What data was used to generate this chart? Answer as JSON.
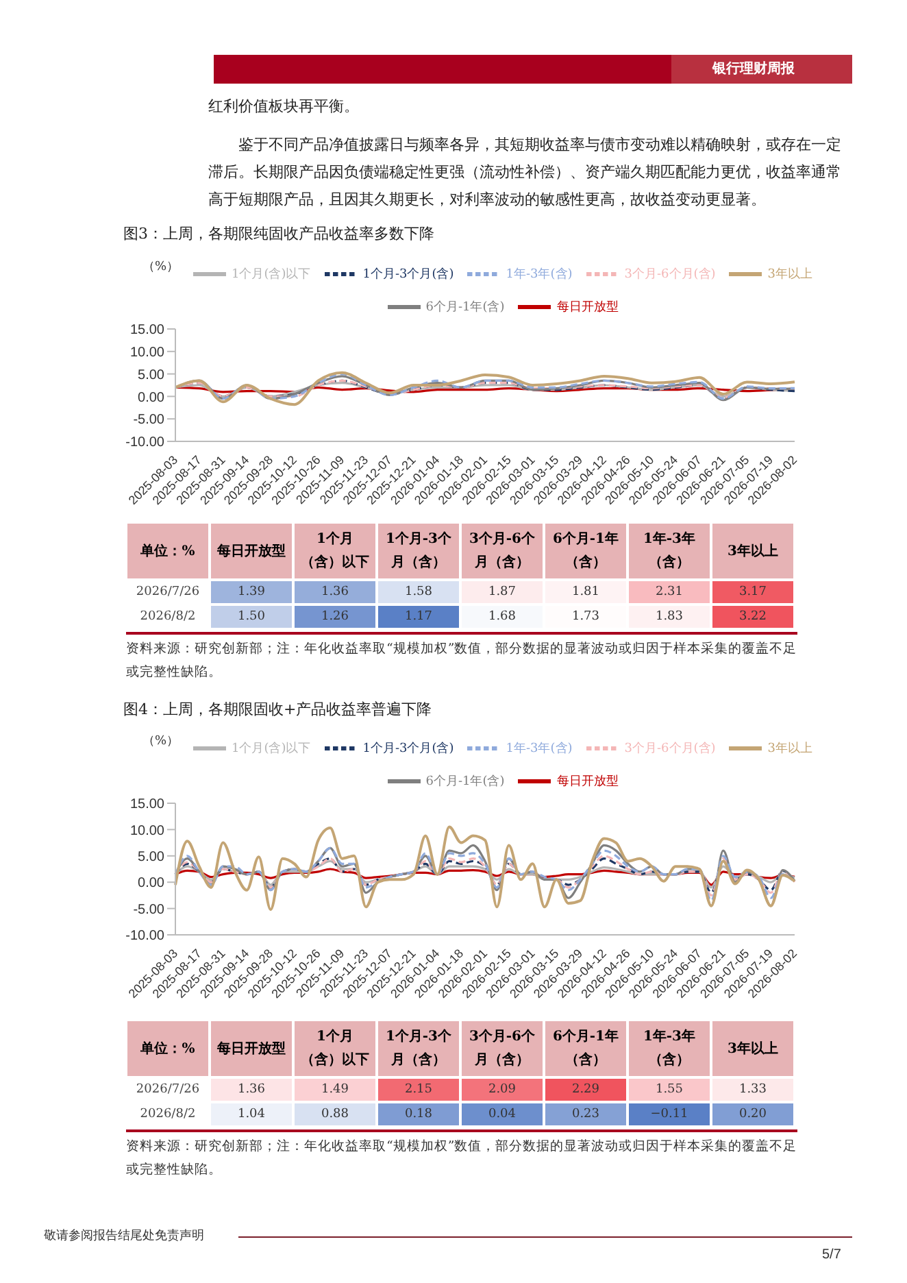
{
  "chart_data": [
    {
      "type": "line",
      "title": "图3：上周，各期限纯固收产品收益率多数下降",
      "ylabel": "（%）",
      "annotations": [
        "银行理财周报",
        "红利价值板块再平衡。",
        "鉴于不同产品净值披露日与频率各异，其短期收益率与债市变动难以精确映射，或存在一定滞后。长期限产品因负债端稳定性更强（流动性补偿）、资产端久期匹配能力更优，收益率通常高于短期限产品，且因其久期更长，对利率波动的敏感性更高，故收益变动更显著。"
      ],
      "categories": [
        "2025-08-03",
        "2025-08-17",
        "2025-08-31",
        "2025-09-14",
        "2025-09-28",
        "2025-10-12",
        "2025-10-26",
        "2025-11-09",
        "2025-11-23",
        "2025-12-07",
        "2025-12-21",
        "2026-01-04",
        "2026-01-18",
        "2026-02-01",
        "2026-02-15",
        "2026-03-01",
        "2026-03-15",
        "2026-03-29",
        "2026-04-12",
        "2026-04-26",
        "2026-05-10",
        "2026-05-24",
        "2026-06-07",
        "2026-06-21",
        "2026-07-05",
        "2026-07-19",
        "2026-08-02"
      ],
      "series": [
        {
          "name": "每日开放型",
          "color": "#c00000",
          "values": [
            2,
            1.8,
            1,
            1.2,
            1.2,
            1,
            2,
            1.5,
            1.8,
            1.3,
            1,
            1.5,
            1.5,
            1.5,
            1.8,
            1.5,
            1.2,
            1.5,
            1.8,
            1.8,
            1.5,
            1.5,
            1.8,
            1.5,
            1.2,
            1.4,
            1.5
          ]
        },
        {
          "name": "1个月(含)以下",
          "color": "#b4b4b4",
          "values": [
            2,
            2.5,
            0,
            2,
            0,
            1,
            2.5,
            3,
            2,
            0.8,
            1.5,
            2,
            2,
            2.5,
            2.5,
            1.5,
            1.5,
            2,
            2.5,
            2,
            1.5,
            2,
            2.5,
            0,
            2,
            1.5,
            1.26
          ]
        },
        {
          "name": "1个月-3个月(含)",
          "color": "#1f3864",
          "line_style": "dashed",
          "values": [
            2,
            3,
            0,
            2,
            0,
            0.5,
            2.5,
            3.5,
            2,
            0.5,
            1.5,
            2.5,
            2,
            3,
            3,
            1.5,
            1.5,
            2,
            2.5,
            2,
            1.5,
            2,
            2.5,
            -0.5,
            2,
            1.5,
            1.17
          ]
        },
        {
          "name": "3个月-6个月(含)",
          "color": "#f4b6b6",
          "line_style": "dashed",
          "values": [
            2,
            3,
            0,
            2,
            0,
            0,
            2.5,
            3.5,
            2.2,
            0.5,
            1.5,
            2.5,
            2,
            3,
            3,
            1.8,
            1.8,
            2.2,
            2.5,
            2.2,
            1.8,
            2.2,
            2.5,
            -0.3,
            2,
            1.8,
            1.68
          ]
        },
        {
          "name": "6个月-1年(含)",
          "color": "#7f7f7f",
          "values": [
            2,
            3.5,
            -0.5,
            2.5,
            -0.5,
            0.5,
            3,
            4.5,
            2.5,
            0.3,
            2,
            3,
            2,
            3.5,
            3.5,
            1.5,
            1.8,
            2.5,
            3.5,
            3,
            2,
            2.5,
            3,
            -0.8,
            2,
            1.7,
            1.73
          ]
        },
        {
          "name": "1年-3年(含)",
          "color": "#8faadc",
          "line_style": "dashed",
          "values": [
            2,
            3.5,
            -0.5,
            2.5,
            -0.5,
            0,
            3,
            5,
            2.5,
            0.3,
            2,
            3.5,
            2,
            3.5,
            3.5,
            2,
            2,
            2.8,
            3.5,
            3,
            2.2,
            2.8,
            3.2,
            -0.5,
            2.2,
            1.8,
            1.83
          ]
        },
        {
          "name": "3年以上",
          "color": "#c4a574",
          "values": [
            2,
            3.5,
            -1.2,
            2.5,
            -0.5,
            -1.8,
            3.5,
            5.3,
            3,
            0.8,
            2.5,
            2.5,
            3.5,
            4.8,
            4.3,
            2.5,
            2.8,
            3.5,
            4.5,
            4,
            3,
            3.3,
            4.2,
            0.5,
            3.2,
            2.8,
            3.22
          ]
        }
      ],
      "ylim": [
        -10,
        15
      ],
      "yticks": [
        {
          "value": -10,
          "label": "-10.00"
        },
        {
          "value": -5,
          "label": "-5.00"
        },
        {
          "value": 0,
          "label": "0.00"
        },
        {
          "value": 5,
          "label": "5.00"
        },
        {
          "value": 10,
          "label": "10.00"
        },
        {
          "value": 15,
          "label": "15.00"
        }
      ],
      "grid": false,
      "legend": "top",
      "marker": "none",
      "line_style": "solid"
    },
    {
      "type": "heatmap",
      "ylabel": "单位：%",
      "annotations": [
        "资料来源：研究创新部；注：年化收益率取“规模加权”数值，部分数据的显著波动或归因于样本采集的覆盖不足或完整性缺陷。"
      ],
      "categories": [
        "每日开放型",
        "1个月（含）以下",
        "1个月-3个月（含）",
        "3个月-6个月（含）",
        "6个月-1年（含）",
        "1年-3年（含）",
        "3年以上"
      ],
      "y_categories": [
        "2026/7/26",
        "2026/8/2"
      ],
      "cells": [
        [
          1.39,
          1.36,
          1.58,
          1.87,
          1.81,
          2.31,
          3.17
        ],
        [
          1.5,
          1.26,
          1.17,
          1.68,
          1.73,
          1.83,
          3.22
        ]
      ],
      "cell_labels": [
        [
          "1.39",
          "1.36",
          "1.58",
          "1.87",
          "1.81",
          "2.31",
          "3.17"
        ],
        [
          "1.50",
          "1.26",
          "1.17",
          "1.68",
          "1.73",
          "1.83",
          "3.22"
        ]
      ],
      "colors": [
        "#5a80c6",
        "#ffffff",
        "#f0545e"
      ]
    },
    {
      "type": "line",
      "title": "图4：上周，各期限固收+产品收益率普遍下降",
      "ylabel": "（%）",
      "categories": [
        "2025-08-03",
        null,
        "2025-08-17",
        null,
        "2025-08-31",
        null,
        "2025-09-14",
        null,
        "2025-09-28",
        null,
        "2025-10-12",
        null,
        "2025-10-26",
        null,
        "2025-11-09",
        null,
        "2025-11-23",
        null,
        "2025-12-07",
        null,
        "2025-12-21",
        null,
        "2026-01-04",
        null,
        "2026-01-18",
        null,
        "2026-02-01",
        null,
        "2026-02-15",
        null,
        "2026-03-01",
        null,
        "2026-03-15",
        null,
        "2026-03-29",
        null,
        "2026-04-12",
        null,
        "2026-04-26",
        null,
        "2026-05-10",
        null,
        "2026-05-24",
        null,
        "2026-06-07",
        null,
        "2026-06-21",
        null,
        "2026-07-05",
        null,
        "2026-07-19",
        null,
        "2026-08-02"
      ],
      "series": [
        {
          "name": "每日开放型",
          "color": "#c00000",
          "values": [
            1.5,
            2.2,
            2,
            1,
            1.5,
            1.8,
            1.8,
            1.5,
            0.8,
            1.5,
            1.8,
            1.8,
            2,
            2.5,
            2,
            1.8,
            0.8,
            1,
            1.2,
            1.5,
            1.8,
            1.8,
            1.5,
            2.2,
            2.2,
            2.3,
            2,
            1.2,
            2,
            1.5,
            1.5,
            1,
            1.2,
            1.5,
            1.5,
            1.8,
            2.2,
            2,
            1.8,
            1.5,
            1.5,
            1.5,
            1.5,
            1.8,
            1.8,
            -0.5,
            2,
            1.5,
            1.5,
            1,
            0.8,
            1.36,
            1.04
          ]
        },
        {
          "name": "1个月(含)以下",
          "color": "#b4b4b4",
          "values": [
            1.5,
            3,
            2,
            0.5,
            2.5,
            2,
            1.5,
            2,
            -0.5,
            2,
            2,
            2,
            3,
            4,
            2.5,
            2.5,
            0,
            0.5,
            1,
            1.5,
            2,
            3,
            1.5,
            3,
            3,
            3,
            2.5,
            0.5,
            2.5,
            1.5,
            1.5,
            0.5,
            0.5,
            0.5,
            1,
            2,
            2.8,
            2.5,
            2,
            1.5,
            1.5,
            1.5,
            1.5,
            2,
            2,
            -1,
            3,
            1,
            1.5,
            1,
            0,
            1.49,
            0.88
          ]
        },
        {
          "name": "1个月-3个月(含)",
          "color": "#1f3864",
          "line_style": "dashed",
          "values": [
            1.5,
            3.5,
            2,
            0,
            2.5,
            2,
            1.5,
            2,
            -1,
            2,
            2.5,
            2,
            3.5,
            4.5,
            2,
            2.5,
            -0.5,
            0.5,
            1,
            1.5,
            2,
            3.5,
            1.5,
            4,
            3.5,
            4,
            3,
            -0.5,
            3.5,
            1.5,
            2,
            0.5,
            0.5,
            -0.5,
            0.5,
            2.5,
            4.5,
            3.5,
            2.5,
            1.5,
            2,
            1.5,
            1.5,
            2,
            2,
            -2,
            4,
            0.5,
            1.5,
            0.5,
            -1.5,
            2.15,
            0.18
          ]
        },
        {
          "name": "3个月-6个月(含)",
          "color": "#f4b6b6",
          "line_style": "dashed",
          "values": [
            1.5,
            3.8,
            2,
            0,
            2.5,
            2,
            1.5,
            2,
            -1,
            2,
            2.5,
            2,
            3,
            4.5,
            2,
            2.5,
            -0.5,
            0.5,
            1,
            1.5,
            2,
            4,
            1.5,
            4.5,
            3.8,
            4.5,
            3,
            -0.5,
            3.5,
            1.5,
            2,
            0.5,
            0.5,
            -1,
            0.5,
            3,
            5,
            4,
            2.5,
            1.5,
            2,
            1.5,
            1.5,
            2,
            2,
            -2.5,
            4.5,
            0.5,
            1.5,
            0.5,
            -2,
            2.09,
            0.04
          ]
        },
        {
          "name": "6个月-1年(含)",
          "color": "#7f7f7f",
          "values": [
            1.5,
            4.5,
            2,
            -0.5,
            3,
            2.5,
            1.5,
            2,
            -1.5,
            2,
            2.5,
            2,
            4,
            6.5,
            3,
            3.5,
            -2,
            0,
            1,
            1.5,
            2,
            5,
            1.5,
            6,
            5.5,
            7,
            4,
            -1.5,
            4.5,
            1.5,
            2,
            0.5,
            0.5,
            -3,
            0,
            3.5,
            7,
            6,
            3.5,
            2,
            3,
            1.5,
            1.5,
            2.5,
            2.5,
            -4.5,
            6,
            0,
            2,
            0.5,
            -4.5,
            2.29,
            0.23
          ]
        },
        {
          "name": "1年-3年(含)",
          "color": "#8faadc",
          "line_style": "dashed",
          "values": [
            1.5,
            5,
            2,
            -0.5,
            3,
            3,
            1.5,
            2,
            -1.5,
            2,
            2.5,
            2,
            4,
            6.5,
            3.5,
            3.5,
            -1,
            0,
            1,
            1.5,
            2,
            5.5,
            1.5,
            5.5,
            5,
            5.5,
            3.5,
            -1,
            4.5,
            1.5,
            2,
            1,
            0.5,
            -1.5,
            0.5,
            3.5,
            6,
            5,
            3,
            2,
            3,
            1.5,
            1.5,
            2.5,
            2.5,
            -3.5,
            5,
            1,
            2,
            1,
            -3,
            1.55,
            -0.11
          ]
        },
        {
          "name": "3年以上",
          "color": "#c4a574",
          "values": [
            -0.5,
            7.8,
            3,
            -1,
            7.5,
            2,
            -1.5,
            4.8,
            -5.2,
            4.5,
            3.5,
            1,
            8,
            10.3,
            4.5,
            5,
            -4.7,
            0,
            0.5,
            0.5,
            1.5,
            8.8,
            1.5,
            10.5,
            7.5,
            8.8,
            8,
            -4.7,
            7,
            0.5,
            3.5,
            -4.7,
            0.5,
            -4,
            -3.5,
            4,
            8.3,
            7.5,
            4,
            4.5,
            3,
            0.2,
            3,
            3,
            2.5,
            -4.5,
            4,
            -0.3,
            2.3,
            0.5,
            -4.5,
            1.33,
            0.2
          ]
        }
      ],
      "ylim": [
        -10,
        15
      ],
      "yticks": [
        {
          "value": -10,
          "label": "-10.00"
        },
        {
          "value": -5,
          "label": "-5.00"
        },
        {
          "value": 0,
          "label": "0.00"
        },
        {
          "value": 5,
          "label": "5.00"
        },
        {
          "value": 10,
          "label": "10.00"
        },
        {
          "value": 15,
          "label": "15.00"
        }
      ],
      "grid": false,
      "legend": "top",
      "marker": "none",
      "line_style": "solid"
    },
    {
      "type": "heatmap",
      "ylabel": "单位：%",
      "annotations": [
        "资料来源：研究创新部；注：年化收益率取“规模加权”数值，部分数据的显著波动或归因于样本采集的覆盖不足或完整性缺陷。",
        "敬请参阅报告结尾处免责声明",
        "5/7"
      ],
      "categories": [
        "每日开放型",
        "1个月（含）以下",
        "1个月-3个月（含）",
        "3个月-6个月（含）",
        "6个月-1年（含）",
        "1年-3年（含）",
        "3年以上"
      ],
      "y_categories": [
        "2026/7/26",
        "2026/8/2"
      ],
      "cells": [
        [
          1.36,
          1.49,
          2.15,
          2.09,
          2.29,
          1.55,
          1.33
        ],
        [
          1.04,
          0.88,
          0.18,
          0.04,
          0.23,
          -0.11,
          0.2
        ]
      ],
      "cell_labels": [
        [
          "1.36",
          "1.49",
          "2.15",
          "2.09",
          "2.29",
          "1.55",
          "1.33"
        ],
        [
          "1.04",
          "0.88",
          "0.18",
          "0.04",
          "0.23",
          "−0.11",
          "0.20"
        ]
      ],
      "colors": [
        "#5a80c6",
        "#ffffff",
        "#f0545e"
      ]
    }
  ]
}
